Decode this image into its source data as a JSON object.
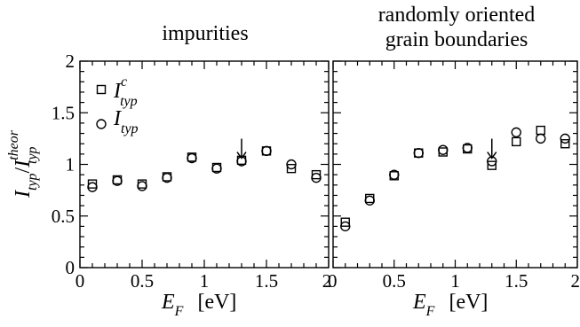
{
  "chart_data": [
    {
      "type": "scatter",
      "title": "impurities",
      "xlabel": "E_F [eV]",
      "ylabel": "I_typ / I_typ^theor",
      "xlim": [
        0,
        2
      ],
      "ylim": [
        0,
        2
      ],
      "xticks": [
        "0",
        "0.5",
        "1",
        "1.5",
        "2"
      ],
      "yticks": [
        "0",
        "0.5",
        "1",
        "1.5",
        "2"
      ],
      "legend": "top-left",
      "series": [
        {
          "name": "I_typ^c",
          "marker": "square",
          "x": [
            0.1,
            0.3,
            0.5,
            0.7,
            0.9,
            1.1,
            1.3,
            1.5,
            1.7,
            1.9
          ],
          "y": [
            0.81,
            0.85,
            0.81,
            0.88,
            1.07,
            0.97,
            1.04,
            1.13,
            0.96,
            0.9
          ]
        },
        {
          "name": "I_typ",
          "marker": "circle",
          "x": [
            0.1,
            0.3,
            0.5,
            0.7,
            0.9,
            1.1,
            1.3,
            1.5,
            1.7,
            1.9
          ],
          "y": [
            0.78,
            0.84,
            0.79,
            0.87,
            1.06,
            0.96,
            1.03,
            1.13,
            1.0,
            0.87
          ]
        }
      ],
      "annotations": [
        {
          "type": "arrow",
          "x": 1.3,
          "y": 1.06
        }
      ]
    },
    {
      "type": "scatter",
      "title": "randomly oriented grain boundaries",
      "title_lines": [
        "randomly oriented",
        "grain boundaries"
      ],
      "xlabel": "E_F [eV]",
      "xlim": [
        0,
        2
      ],
      "ylim": [
        0,
        2
      ],
      "xticks": [
        "0",
        "0.5",
        "1",
        "1.5",
        "2"
      ],
      "series": [
        {
          "name": "I_typ^c",
          "marker": "square",
          "x": [
            0.1,
            0.3,
            0.5,
            0.7,
            0.9,
            1.1,
            1.3,
            1.5,
            1.7,
            1.9
          ],
          "y": [
            0.44,
            0.67,
            0.89,
            1.11,
            1.12,
            1.15,
            0.99,
            1.22,
            1.33,
            1.2
          ]
        },
        {
          "name": "I_typ",
          "marker": "circle",
          "x": [
            0.1,
            0.3,
            0.5,
            0.7,
            0.9,
            1.1,
            1.3,
            1.5,
            1.7,
            1.9
          ],
          "y": [
            0.4,
            0.65,
            0.9,
            1.11,
            1.14,
            1.16,
            1.03,
            1.31,
            1.25,
            1.25
          ]
        }
      ],
      "annotations": [
        {
          "type": "arrow",
          "x": 1.3,
          "y": 1.06
        }
      ]
    }
  ],
  "labels": {
    "y_axis_main": "I",
    "y_axis_sub": "typ",
    "y_axis_slash": "/",
    "y_axis_sup": "theor",
    "x_axis_main": "E",
    "x_axis_sub": "F",
    "x_axis_unit": "[eV]",
    "legend_main": "I",
    "legend_sub": "typ",
    "legend_sup": "c"
  }
}
